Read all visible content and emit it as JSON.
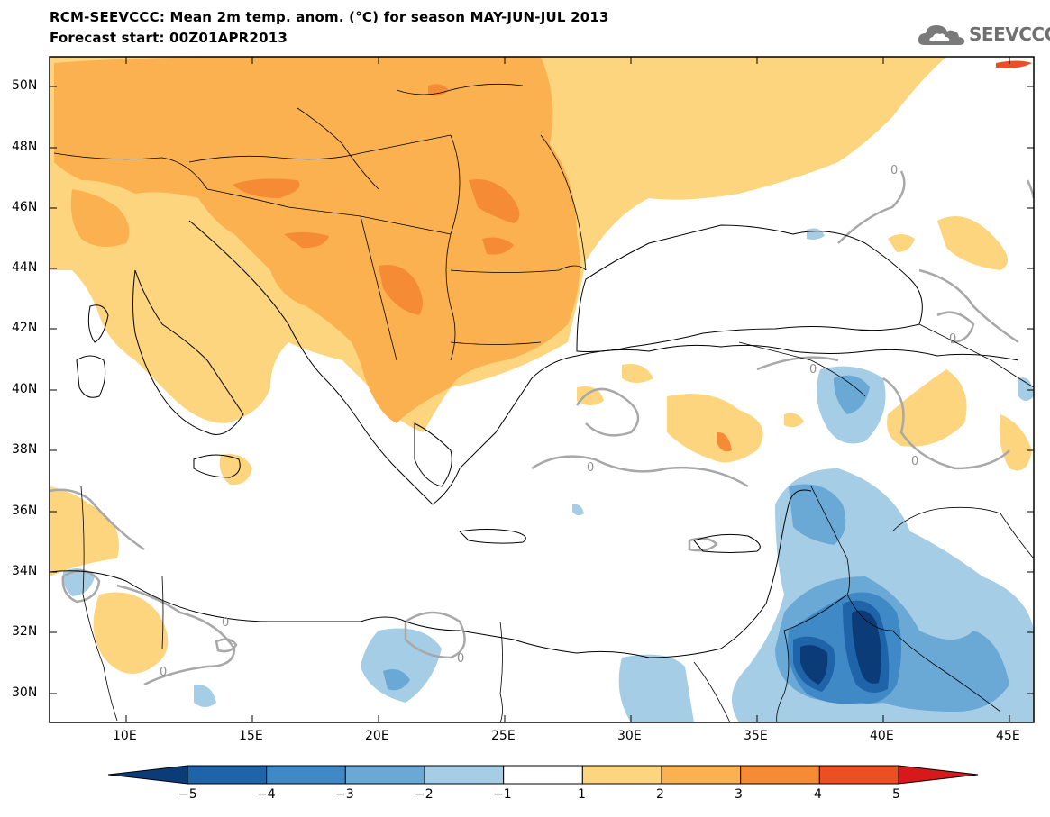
{
  "header": {
    "title_line1": "RCM-SEEVCCC: Mean 2m temp. anom. (°C) for season MAY-JUN-JUL 2013",
    "title_line2": "Forecast start: 00Z01APR2013",
    "logo_text": "SEEVCCC",
    "logo_icon": "cloud-logo-icon"
  },
  "map": {
    "lat_labels": [
      "50N",
      "48N",
      "46N",
      "44N",
      "42N",
      "40N",
      "38N",
      "36N",
      "34N",
      "32N",
      "30N"
    ],
    "lon_labels": [
      "10E",
      "15E",
      "20E",
      "25E",
      "30E",
      "35E",
      "40E",
      "45E"
    ],
    "contour_labels": [
      "0",
      "0",
      "0",
      "0",
      "0",
      "0",
      "0",
      "0"
    ]
  },
  "colorbar": {
    "labels": [
      "−5",
      "−4",
      "−3",
      "−2",
      "−1",
      "1",
      "2",
      "3",
      "4",
      "5"
    ],
    "colors": [
      "#0b3c78",
      "#1f64a8",
      "#3f89c6",
      "#6aa8d6",
      "#a6cde6",
      "#ffffff",
      "#fdd57e",
      "#fbb14f",
      "#f68b35",
      "#ec4f22",
      "#d7191c"
    ]
  }
}
